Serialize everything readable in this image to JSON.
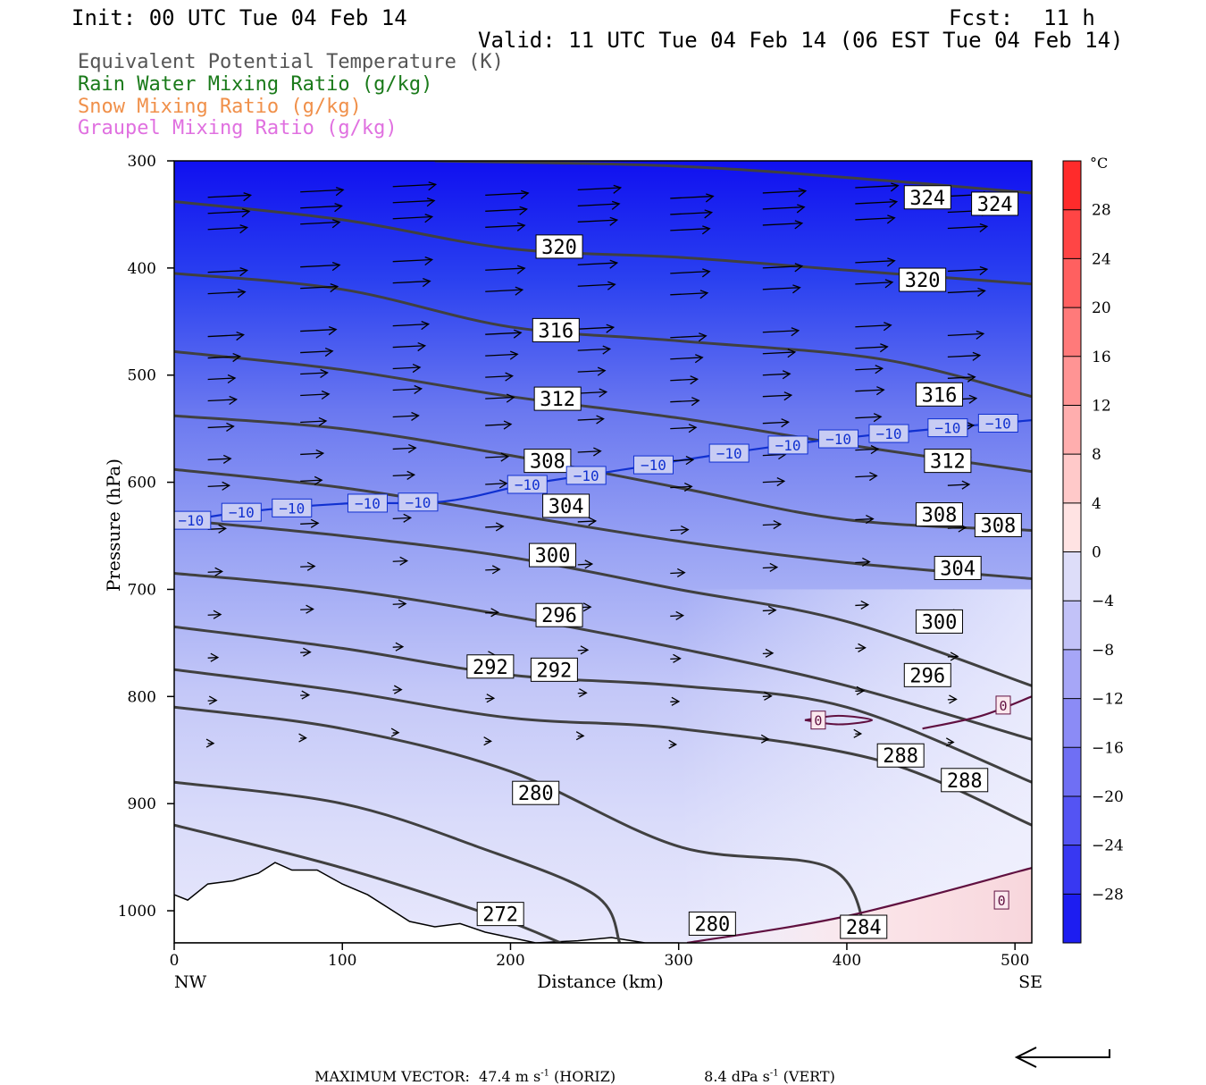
{
  "header": {
    "init": "Init: 00 UTC Tue 04 Feb 14",
    "fcst_label": "Fcst:",
    "fcst_value": "11 h",
    "valid": "Valid: 11 UTC Tue 04 Feb 14 (06 EST Tue 04 Feb 14)"
  },
  "legend": {
    "items": [
      {
        "label": "Equivalent Potential Temperature (K)",
        "color": "#555555"
      },
      {
        "label": "Rain Water Mixing Ratio (g/kg)",
        "color": "#1a7a1a"
      },
      {
        "label": "Snow Mixing Ratio (g/kg)",
        "color": "#f0904a"
      },
      {
        "label": "Graupel Mixing Ratio (g/kg)",
        "color": "#e070e0"
      }
    ]
  },
  "chart_data": {
    "type": "contour-cross-section",
    "xlabel": "Distance (km)",
    "ylabel": "Pressure (hPa)",
    "xlim": [
      0,
      510
    ],
    "ylim": [
      1030,
      300
    ],
    "x_ticks": [
      "0",
      "100",
      "200",
      "300",
      "400",
      "500"
    ],
    "y_ticks": [
      "300",
      "400",
      "500",
      "600",
      "700",
      "800",
      "900",
      "1000"
    ],
    "x_end_labels": {
      "left": "NW",
      "right": "SE"
    },
    "colorbar": {
      "unit": "°C",
      "tick_labels": [
        "28",
        "24",
        "20",
        "16",
        "12",
        "8",
        "4",
        "0",
        "−4",
        "−8",
        "−12",
        "−16",
        "−20",
        "−24",
        "−28"
      ],
      "range": [
        -32,
        32
      ],
      "warm_color": "#ff2020",
      "cold_color": "#1010f0"
    },
    "theta_e_contours": [
      {
        "value": 324,
        "points": [
          [
            155,
            300
          ],
          [
            300,
            305
          ],
          [
            420,
            318
          ],
          [
            510,
            330
          ]
        ],
        "labels": [
          [
            448,
            334
          ],
          [
            488,
            340
          ]
        ]
      },
      {
        "value": 320,
        "points": [
          [
            0,
            338
          ],
          [
            100,
            355
          ],
          [
            200,
            382
          ],
          [
            300,
            390
          ],
          [
            400,
            402
          ],
          [
            510,
            415
          ]
        ],
        "labels": [
          [
            229,
            380
          ],
          [
            445,
            411
          ]
        ]
      },
      {
        "value": 316,
        "points": [
          [
            0,
            405
          ],
          [
            100,
            420
          ],
          [
            200,
            455
          ],
          [
            300,
            468
          ],
          [
            420,
            485
          ],
          [
            510,
            520
          ]
        ],
        "labels": [
          [
            227,
            458
          ],
          [
            455,
            518
          ]
        ]
      },
      {
        "value": 312,
        "points": [
          [
            0,
            478
          ],
          [
            100,
            495
          ],
          [
            200,
            520
          ],
          [
            300,
            540
          ],
          [
            400,
            565
          ],
          [
            510,
            590
          ]
        ],
        "labels": [
          [
            228,
            522
          ],
          [
            460,
            580
          ]
        ]
      },
      {
        "value": 308,
        "points": [
          [
            0,
            538
          ],
          [
            100,
            550
          ],
          [
            200,
            575
          ],
          [
            300,
            605
          ],
          [
            400,
            635
          ],
          [
            510,
            645
          ]
        ],
        "labels": [
          [
            222,
            580
          ],
          [
            455,
            630
          ],
          [
            490,
            640
          ]
        ]
      },
      {
        "value": 304,
        "points": [
          [
            0,
            588
          ],
          [
            100,
            605
          ],
          [
            200,
            630
          ],
          [
            300,
            655
          ],
          [
            400,
            675
          ],
          [
            510,
            690
          ]
        ],
        "labels": [
          [
            233,
            622
          ],
          [
            466,
            680
          ]
        ]
      },
      {
        "value": 300,
        "points": [
          [
            0,
            635
          ],
          [
            100,
            650
          ],
          [
            200,
            670
          ],
          [
            300,
            700
          ],
          [
            400,
            730
          ],
          [
            510,
            790
          ]
        ],
        "labels": [
          [
            225,
            668
          ],
          [
            455,
            730
          ]
        ]
      },
      {
        "value": 296,
        "points": [
          [
            0,
            685
          ],
          [
            100,
            700
          ],
          [
            200,
            725
          ],
          [
            300,
            755
          ],
          [
            400,
            790
          ],
          [
            510,
            840
          ]
        ],
        "labels": [
          [
            229,
            724
          ],
          [
            448,
            780
          ]
        ]
      },
      {
        "value": 292,
        "points": [
          [
            0,
            735
          ],
          [
            100,
            755
          ],
          [
            200,
            780
          ],
          [
            300,
            790
          ],
          [
            400,
            810
          ],
          [
            510,
            880
          ]
        ],
        "labels": [
          [
            188,
            772
          ],
          [
            226,
            775
          ]
        ]
      },
      {
        "value": 288,
        "points": [
          [
            0,
            775
          ],
          [
            100,
            795
          ],
          [
            200,
            820
          ],
          [
            300,
            830
          ],
          [
            420,
            860
          ],
          [
            510,
            920
          ]
        ],
        "labels": [
          [
            432,
            855
          ],
          [
            470,
            878
          ]
        ]
      },
      {
        "value": 284,
        "points": [
          [
            0,
            810
          ],
          [
            100,
            830
          ],
          [
            200,
            870
          ],
          [
            300,
            940
          ],
          [
            390,
            960
          ],
          [
            412,
            1025
          ]
        ],
        "labels": [
          [
            410,
            1015
          ]
        ]
      },
      {
        "value": 280,
        "points": [
          [
            0,
            880
          ],
          [
            100,
            900
          ],
          [
            180,
            940
          ],
          [
            250,
            985
          ],
          [
            265,
            1030
          ]
        ],
        "labels": [
          [
            215,
            890
          ],
          [
            320,
            1012
          ]
        ]
      },
      {
        "value": 272,
        "points": [
          [
            0,
            920
          ],
          [
            100,
            960
          ],
          [
            190,
            1005
          ],
          [
            230,
            1030
          ]
        ],
        "labels": [
          [
            194,
            1003
          ]
        ]
      }
    ],
    "isotherm_contours": [
      {
        "value": -10,
        "color": "#1030d0",
        "points": [
          [
            0,
            638
          ],
          [
            40,
            628
          ],
          [
            100,
            620
          ],
          [
            160,
            618
          ],
          [
            210,
            602
          ],
          [
            260,
            590
          ],
          [
            320,
            575
          ],
          [
            380,
            562
          ],
          [
            440,
            552
          ],
          [
            510,
            542
          ]
        ]
      },
      {
        "value": 0,
        "color": "#601040",
        "points": [
          [
            305,
            1030
          ],
          [
            400,
            1005
          ],
          [
            510,
            960
          ]
        ]
      },
      {
        "value": 0,
        "color": "#601040",
        "points": [
          [
            445,
            830
          ],
          [
            480,
            818
          ],
          [
            510,
            800
          ]
        ]
      }
    ],
    "max_vector": {
      "horiz": "47.4 m s⁻¹ (HORIZ)",
      "vert": "8.4 dPa s⁻¹ (VERT)"
    }
  },
  "footer": {
    "label": "MAXIMUM VECTOR:",
    "horiz": "47.4 m s",
    "horiz_suffix": " (HORIZ)",
    "vert": "8.4 dPa s",
    "vert_suffix": " (VERT)",
    "exp": "-1"
  }
}
